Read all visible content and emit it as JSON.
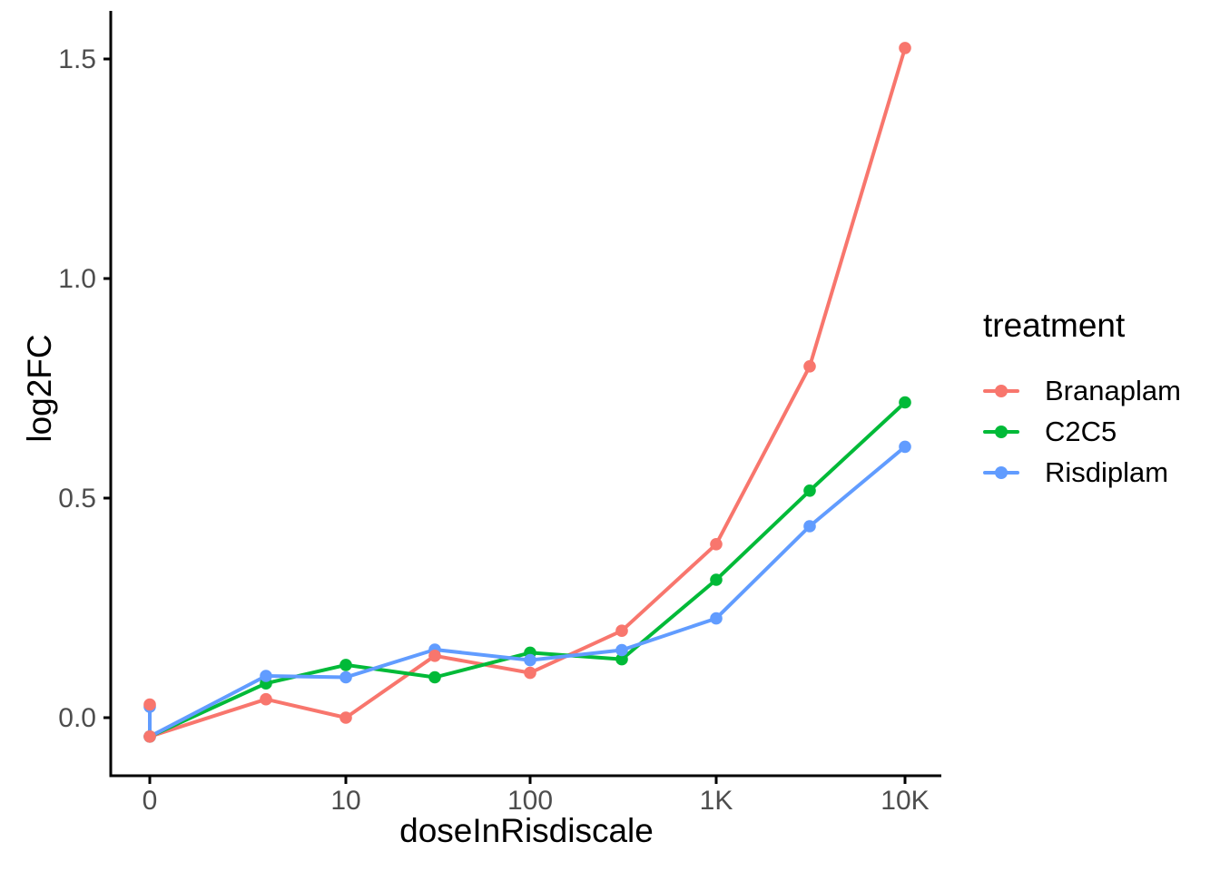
{
  "chart_data": {
    "type": "line",
    "title": "",
    "xlabel": "doseInRisdiscale",
    "ylabel": "log2FC",
    "x_scale": "log10 (zero plotted at left of axis)",
    "grid": "off",
    "background": "#FFFFFF",
    "x_ticks": [
      {
        "label": "0",
        "dose": 0
      },
      {
        "label": "10",
        "dose": 10
      },
      {
        "label": "100",
        "dose": 100
      },
      {
        "label": "1K",
        "dose": 1000
      },
      {
        "label": "10K",
        "dose": 10000
      }
    ],
    "y_ticks": [
      {
        "label": "0.0",
        "value": 0.0
      },
      {
        "label": "0.5",
        "value": 0.5
      },
      {
        "label": "1.0",
        "value": 1.0
      },
      {
        "label": "1.5",
        "value": 1.5
      }
    ],
    "ylim": [
      -0.09,
      1.6
    ],
    "dose_levels": [
      0,
      3,
      10,
      30,
      100,
      300,
      1000,
      3000,
      10000
    ],
    "legend": {
      "title": "treatment",
      "position": "right"
    },
    "series": [
      {
        "name": "Branaplam",
        "color": "#F8766D",
        "doses": [
          0,
          0,
          3,
          10,
          30,
          100,
          300,
          1000,
          3000,
          10000
        ],
        "values": [
          0.03,
          -0.043,
          0.042,
          0.0,
          0.141,
          0.102,
          0.198,
          0.395,
          0.8,
          1.525
        ]
      },
      {
        "name": "C2C5",
        "color": "#00BA38",
        "doses": [
          0,
          3,
          10,
          30,
          100,
          300,
          1000,
          3000,
          10000
        ],
        "values": [
          -0.043,
          0.078,
          0.12,
          0.092,
          0.148,
          0.133,
          0.314,
          0.517,
          0.718
        ]
      },
      {
        "name": "Risdiplam",
        "color": "#619CFF",
        "doses": [
          0,
          0,
          3,
          10,
          30,
          100,
          300,
          1000,
          3000,
          10000
        ],
        "values": [
          0.025,
          -0.043,
          0.095,
          0.092,
          0.155,
          0.131,
          0.154,
          0.226,
          0.436,
          0.617
        ]
      }
    ],
    "colors": {
      "axis_line": "#000000",
      "axis_text": "#4D4D4D",
      "title_text": "#000000"
    }
  }
}
